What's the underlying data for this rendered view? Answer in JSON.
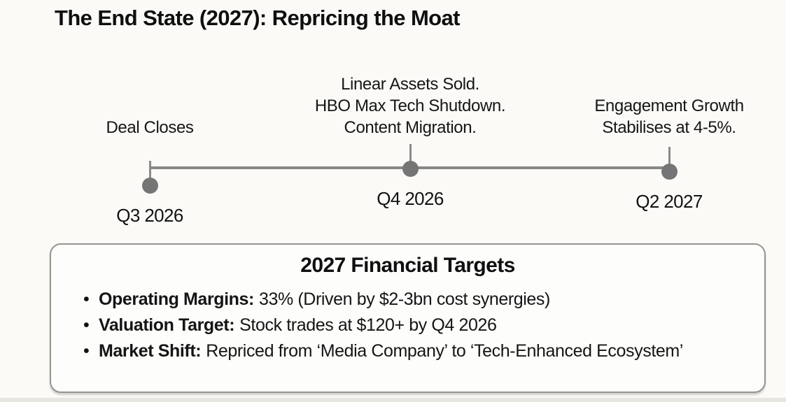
{
  "page": {
    "title": "The End State (2027): Repricing the Moat"
  },
  "timeline": {
    "milestones": [
      {
        "lines": [
          "Deal Closes"
        ],
        "date": "Q3 2026"
      },
      {
        "lines": [
          "Linear Assets Sold.",
          "HBO Max Tech Shutdown.",
          "Content Migration."
        ],
        "date": "Q4 2026"
      },
      {
        "lines": [
          "Engagement Growth",
          "Stabilises at 4-5%."
        ],
        "date": "Q2 2027"
      }
    ]
  },
  "targets_box": {
    "title": "2027 Financial Targets",
    "bullet_char": "•",
    "bullets": [
      {
        "label": "Operating Margins:",
        "text": "33% (Driven by $2-3bn cost synergies)"
      },
      {
        "label": "Valuation Target:",
        "text": "Stock trades at $120+ by Q4 2026"
      },
      {
        "label": "Market Shift:",
        "text": "Repriced from ‘Media Company’ to ‘Tech-Enhanced Ecosystem’"
      }
    ]
  },
  "colors": {
    "background": "#fbfaf7",
    "timeline_gray": "#878787",
    "dot_gray": "#757575",
    "box_border": "#96958e",
    "text": "#141414"
  }
}
